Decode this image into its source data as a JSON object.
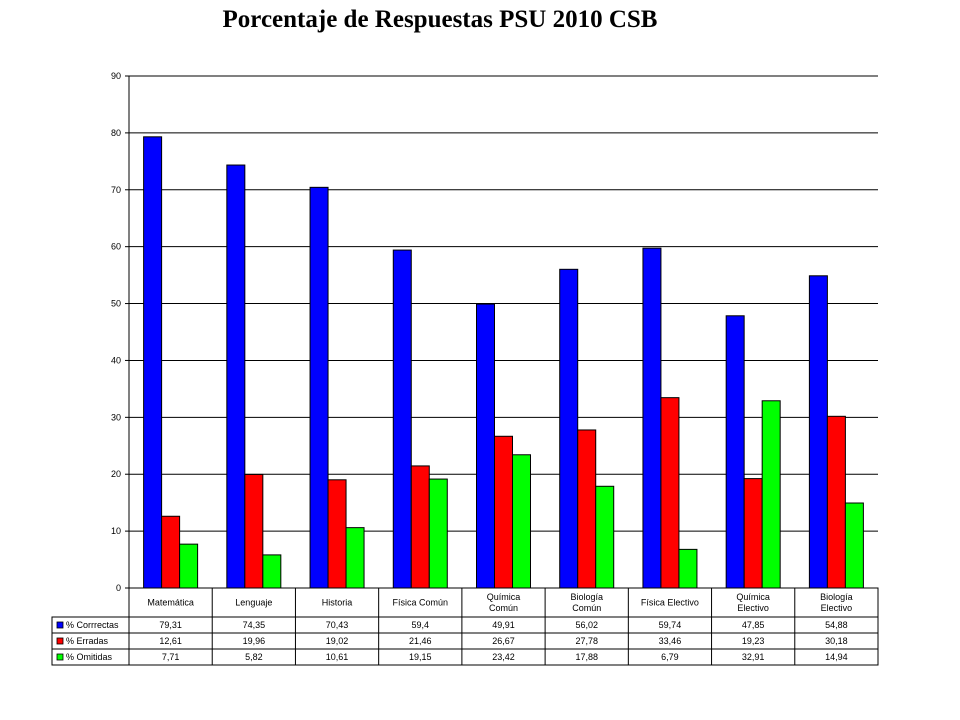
{
  "title": "Porcentaje de Respuestas PSU  2010 CSB",
  "chart_data": {
    "type": "bar",
    "title": "Porcentaje de Respuestas PSU  2010 CSB",
    "categories": [
      [
        "Matemática"
      ],
      [
        "Lenguaje"
      ],
      [
        "Historia"
      ],
      [
        "Física Común"
      ],
      [
        "Química",
        "Común"
      ],
      [
        "Biología",
        "Común"
      ],
      [
        "Física Electivo"
      ],
      [
        "Química",
        "Electivo"
      ],
      [
        "Biología",
        "Electivo"
      ]
    ],
    "series": [
      {
        "name": "%  Corrrectas",
        "color": "#0000ff",
        "values": [
          79.31,
          74.35,
          70.43,
          59.4,
          49.91,
          56.02,
          59.74,
          47.85,
          54.88
        ],
        "labels": [
          "79,31",
          "74,35",
          "70,43",
          "59,4",
          "49,91",
          "56,02",
          "59,74",
          "47,85",
          "54,88"
        ]
      },
      {
        "name": "%  Erradas",
        "color": "#ff0000",
        "values": [
          12.61,
          19.96,
          19.02,
          21.46,
          26.67,
          27.78,
          33.46,
          19.23,
          30.18
        ],
        "labels": [
          "12,61",
          "19,96",
          "19,02",
          "21,46",
          "26,67",
          "27,78",
          "33,46",
          "19,23",
          "30,18"
        ]
      },
      {
        "name": "%  Omitidas",
        "color": "#00ff00",
        "values": [
          7.71,
          5.82,
          10.61,
          19.15,
          23.42,
          17.88,
          6.79,
          32.91,
          14.94
        ],
        "labels": [
          "7,71",
          "5,82",
          "10,61",
          "19,15",
          "23,42",
          "17,88",
          "6,79",
          "32,91",
          "14,94"
        ]
      }
    ],
    "ylim": [
      0,
      90
    ],
    "yticks": [
      0,
      10,
      20,
      30,
      40,
      50,
      60,
      70,
      80,
      90
    ],
    "grid": true,
    "legend": "data table"
  }
}
